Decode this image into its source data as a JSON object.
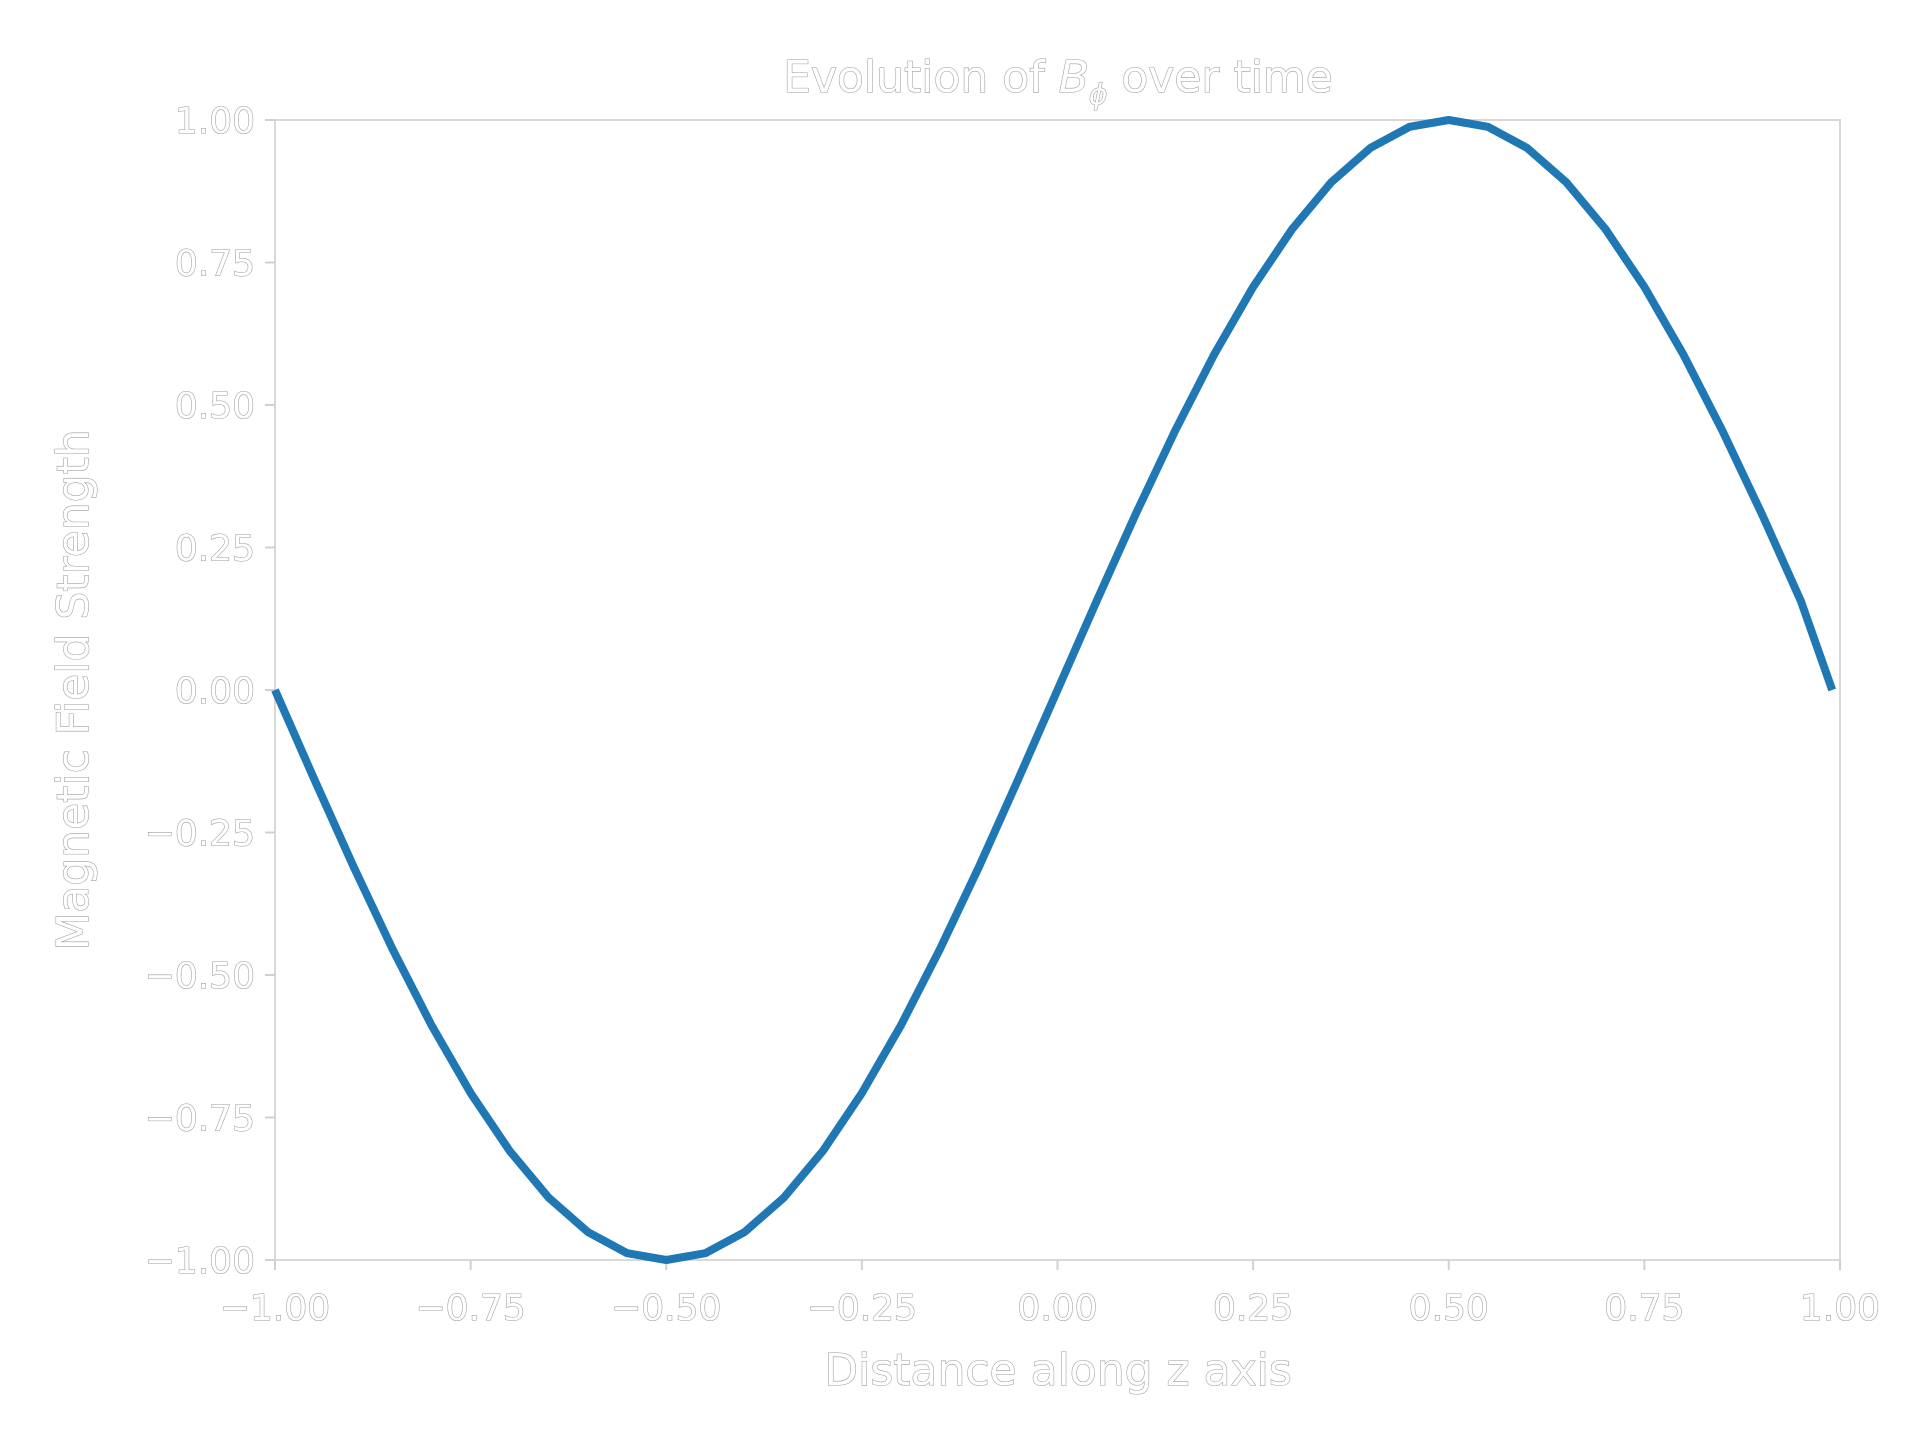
{
  "chart_data": {
    "type": "line",
    "title_prefix": "Evolution of ",
    "title_symbol": "B",
    "title_subscript": "ϕ",
    "title_suffix": " over time",
    "xlabel": "Distance along z axis",
    "ylabel": "Magnetic Field Strength",
    "xlim": [
      -1.0,
      1.0
    ],
    "ylim": [
      -1.0,
      1.0
    ],
    "xticks": [
      -1.0,
      -0.75,
      -0.5,
      -0.25,
      0.0,
      0.25,
      0.5,
      0.75,
      1.0
    ],
    "xtick_labels": [
      "−1.00",
      "−0.75",
      "−0.50",
      "−0.25",
      "0.00",
      "0.25",
      "0.50",
      "0.75",
      "1.00"
    ],
    "yticks": [
      1.0,
      0.75,
      0.5,
      0.25,
      0.0,
      -0.25,
      -0.5,
      -0.75,
      -1.0
    ],
    "ytick_labels": [
      "1.00",
      "0.75",
      "0.50",
      "0.25",
      "0.00",
      "−0.25",
      "−0.50",
      "−0.75",
      "−1.00"
    ],
    "grid": false,
    "series": [
      {
        "color": "#1f77b4",
        "x": [
          -1.0,
          -0.95,
          -0.9,
          -0.85,
          -0.8,
          -0.75,
          -0.7,
          -0.65,
          -0.6,
          -0.55,
          -0.5,
          -0.45,
          -0.4,
          -0.35,
          -0.3,
          -0.25,
          -0.2,
          -0.15,
          -0.1,
          -0.05,
          0.0,
          0.05,
          0.1,
          0.15,
          0.2,
          0.25,
          0.3,
          0.35,
          0.4,
          0.45,
          0.5,
          0.55,
          0.6,
          0.65,
          0.7,
          0.75,
          0.8,
          0.85,
          0.9,
          0.95,
          0.99
        ],
        "y": [
          0.0,
          -0.156,
          -0.309,
          -0.454,
          -0.588,
          -0.707,
          -0.809,
          -0.891,
          -0.951,
          -0.988,
          -1.0,
          -0.988,
          -0.951,
          -0.891,
          -0.809,
          -0.707,
          -0.588,
          -0.454,
          -0.309,
          -0.156,
          0.0,
          0.156,
          0.309,
          0.454,
          0.588,
          0.707,
          0.809,
          0.891,
          0.951,
          0.988,
          1.0,
          0.988,
          0.951,
          0.891,
          0.809,
          0.707,
          0.588,
          0.454,
          0.309,
          0.156,
          0.0
        ]
      }
    ]
  }
}
